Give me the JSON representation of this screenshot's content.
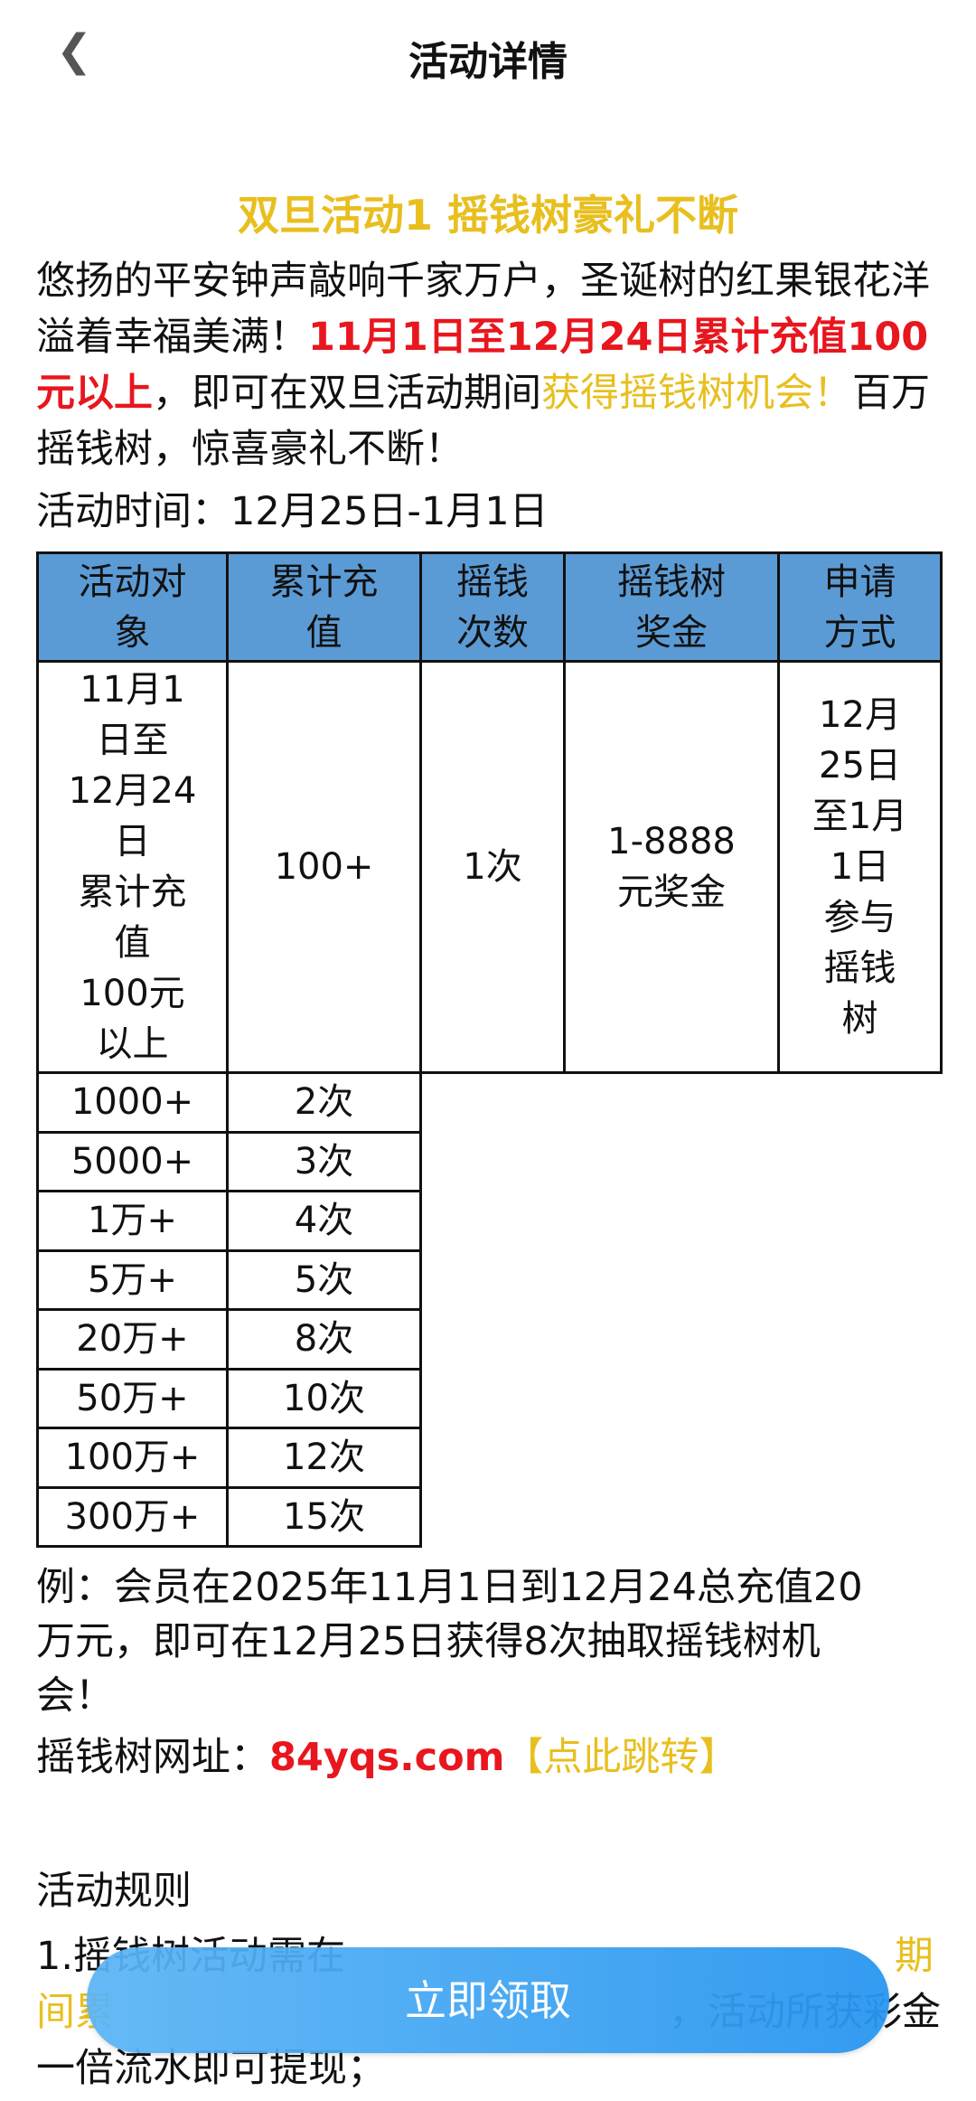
{
  "header": {
    "title": "活动详情",
    "back_icon": "chevron-left-icon"
  },
  "article": {
    "title": "双旦活动1 摇钱树豪礼不断",
    "intro_1": "悠扬的平安钟声敲响千家万户，圣诞树的红果银花洋溢着幸福美满！",
    "intro_red": "11月1日至12月24日累计充值100元以上",
    "intro_2": "，即可在双旦活动期间",
    "intro_yellow": "获得摇钱树机会！",
    "intro_3": "百万摇钱树，惊喜豪礼不断！",
    "time": "活动时间：12月25日-1月1日"
  },
  "table": {
    "headers": [
      [
        "活动对",
        "象"
      ],
      [
        "累计充",
        "值"
      ],
      [
        "摇钱",
        "次数"
      ],
      [
        "摇钱树",
        "奖金"
      ],
      [
        "申请",
        "方式"
      ]
    ],
    "target": [
      "11月1",
      "日至",
      "12月24",
      "日",
      "累计充",
      "值",
      "100元",
      "以上"
    ],
    "rows": [
      [
        "100+",
        "1次"
      ],
      [
        "1000+",
        "2次"
      ],
      [
        "5000+",
        "3次"
      ],
      [
        "1万+",
        "4次"
      ],
      [
        "5万+",
        "5次"
      ],
      [
        "20万+",
        "8次"
      ],
      [
        "50万+",
        "10次"
      ],
      [
        "100万+",
        "12次"
      ],
      [
        "300万+",
        "15次"
      ]
    ],
    "bonus": [
      "1-8888",
      "元奖金"
    ],
    "method": [
      "12月",
      "25日",
      "至1月",
      "1日",
      "参与",
      "摇钱",
      "树"
    ]
  },
  "example": {
    "l1": "例：会员在2025年11月1日到12月24总充值20",
    "l2": "万元，即可在12月25日获得8次抽取摇钱树机",
    "l3": "会！"
  },
  "link": {
    "label": "摇钱树网址：",
    "url": "84yqs.com",
    "jump": "【点此跳转】"
  },
  "rules": {
    "title": "活动规则",
    "l1a": "1.摇钱树活动需在",
    "l1b": "期",
    "l2a": "间累",
    "l2b": "，活动所获彩金",
    "l3": "一倍流水即可提现；"
  },
  "button": {
    "label": "立即领取"
  },
  "colors": {
    "accent_yellow": "#e8bf1e",
    "accent_red": "#e8161e",
    "table_header": "#5b9bd5",
    "button": "#3aa0f0"
  }
}
